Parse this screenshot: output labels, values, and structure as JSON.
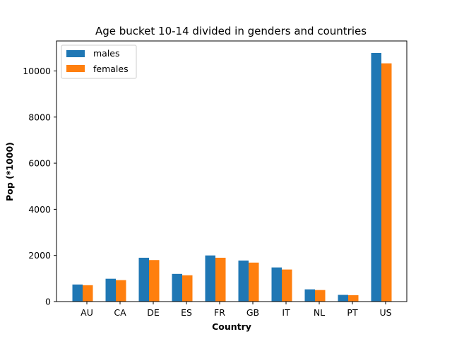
{
  "chart_data": {
    "type": "bar",
    "title": "Age bucket 10-14 divided in genders and countries",
    "xlabel": "Country",
    "ylabel": "Pop (*1000)",
    "categories": [
      "AU",
      "CA",
      "DE",
      "ES",
      "FR",
      "GB",
      "IT",
      "NL",
      "PT",
      "US"
    ],
    "series": [
      {
        "name": "males",
        "color": "#1f77b4",
        "values": [
          740,
          990,
          1900,
          1200,
          2000,
          1780,
          1480,
          530,
          290,
          10780
        ]
      },
      {
        "name": "females",
        "color": "#ff7f0e",
        "values": [
          710,
          930,
          1800,
          1140,
          1900,
          1690,
          1390,
          500,
          275,
          10330
        ]
      }
    ],
    "ylim": [
      0,
      11300
    ],
    "yticks": [
      0,
      2000,
      4000,
      6000,
      8000,
      10000
    ],
    "legend_position": "top-left",
    "grid": false
  }
}
